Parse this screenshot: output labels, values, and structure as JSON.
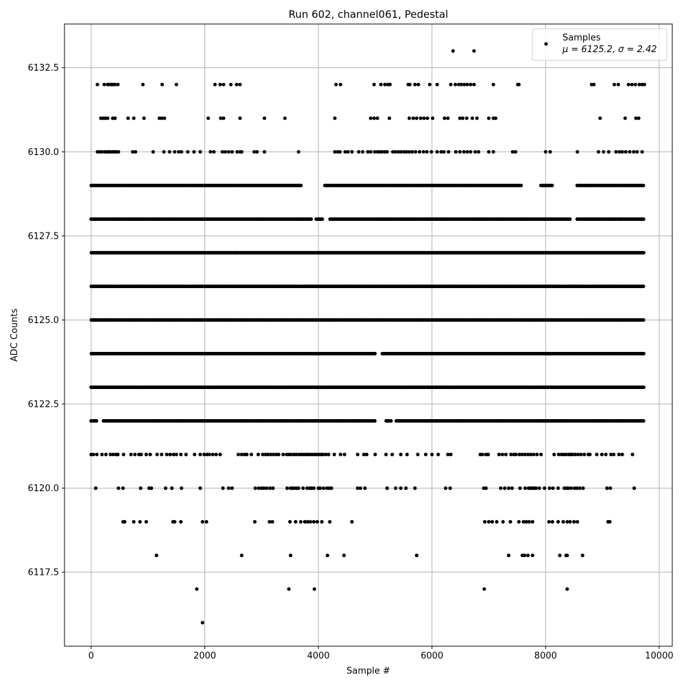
{
  "chart_data": {
    "type": "scatter",
    "title": "Run 602, channel061, Pedestal",
    "xlabel": "Sample #",
    "ylabel": "ADC Counts",
    "xlim": [
      -470,
      10230
    ],
    "ylim": [
      6115.3,
      6133.8
    ],
    "xticks": [
      0,
      2000,
      4000,
      6000,
      8000,
      10000
    ],
    "yticks": [
      6117.5,
      6120.0,
      6122.5,
      6125.0,
      6127.5,
      6130.0,
      6132.5
    ],
    "ytick_labels": [
      "6117.5",
      "6120.0",
      "6122.5",
      "6125.0",
      "6127.5",
      "6130.0",
      "6132.5"
    ],
    "grid": true,
    "legend_position": "top-right",
    "series": [
      {
        "name": "Samples",
        "annotation": "μ = 6125.2, σ = 2.42",
        "color": "#000000",
        "x_range": [
          0,
          9740
        ],
        "levels": [
          {
            "y": 6133,
            "x": [
              6370,
              6740
            ]
          },
          {
            "y": 6132,
            "x": [
              110,
              230,
              290,
              330,
              360,
              390,
              420,
              470,
              910,
              1250,
              1500,
              2180,
              2270,
              2330,
              2460,
              2560,
              2620,
              4310,
              4390,
              4980,
              5100,
              5170,
              5220,
              5260,
              5580,
              5610,
              5700,
              5760,
              5960,
              6090,
              6330,
              6410,
              6470,
              6520,
              6570,
              6620,
              6680,
              6740,
              7080,
              7510,
              7530,
              8810,
              8850,
              9210,
              9280,
              9460,
              9520,
              9580,
              9650,
              9700,
              9740
            ]
          },
          {
            "y": 6131,
            "x": [
              170,
              210,
              250,
              290,
              380,
              420,
              650,
              750,
              930,
              1200,
              1240,
              1290,
              2060,
              2280,
              2330,
              2620,
              3050,
              3410,
              4290,
              4920,
              4980,
              5040,
              5250,
              5600,
              5670,
              5730,
              5800,
              5860,
              5920,
              6010,
              6220,
              6280,
              6490,
              6540,
              6610,
              6710,
              6790,
              7000,
              7080,
              7120,
              8960,
              9400,
              9590,
              9640
            ]
          },
          {
            "y": 6130,
            "x": [
              110,
              150,
              190,
              240,
              280,
              310,
              340,
              380,
              410,
              440,
              480,
              730,
              780,
              1090,
              1280,
              1380,
              1470,
              1540,
              1590,
              1700,
              1810,
              1920,
              2100,
              2160,
              2310,
              2360,
              2420,
              2480,
              2570,
              2620,
              2650,
              2870,
              2920,
              3050,
              3650,
              4290,
              4340,
              4380,
              4470,
              4520,
              4590,
              4710,
              4780,
              4870,
              4920,
              4990,
              5040,
              5080,
              5120,
              5170,
              5210,
              5310,
              5360,
              5410,
              5460,
              5510,
              5550,
              5600,
              5650,
              5710,
              5780,
              5850,
              5910,
              5990,
              6090,
              6160,
              6210,
              6290,
              6420,
              6490,
              6560,
              6620,
              6680,
              6760,
              6820,
              7000,
              7080,
              7420,
              7470,
              8000,
              8080,
              8560,
              8930,
              9020,
              9110,
              9240,
              9300,
              9350,
              9410,
              9480,
              9550,
              9610,
              9700
            ]
          }
        ],
        "dense_levels": [
          {
            "y": 6129,
            "x_from": 0,
            "x_to": 9740,
            "gaps": [
              [
                3700,
                4100
              ],
              [
                7590,
                7900
              ],
              [
                8120,
                8540
              ]
            ]
          },
          {
            "y": 6128,
            "x_from": 0,
            "x_to": 9740,
            "gaps": [
              [
                3880,
                3950
              ],
              [
                4080,
                4180
              ],
              [
                8440,
                8540
              ]
            ]
          },
          {
            "y": 6127,
            "x_from": 0,
            "x_to": 9740,
            "gaps": []
          },
          {
            "y": 6126,
            "x_from": 0,
            "x_to": 9740,
            "gaps": []
          },
          {
            "y": 6125,
            "x_from": 0,
            "x_to": 9740,
            "gaps": []
          },
          {
            "y": 6124,
            "x_from": 0,
            "x_to": 9740,
            "gaps": [
              [
                5010,
                5110
              ]
            ]
          },
          {
            "y": 6123,
            "x_from": 0,
            "x_to": 9740,
            "gaps": []
          },
          {
            "y": 6122,
            "x_from": 0,
            "x_to": 9740,
            "gaps": [
              [
                110,
                210
              ],
              [
                5000,
                5170
              ],
              [
                5300,
                5360
              ]
            ]
          }
        ],
        "levels_sparse_lower": [
          {
            "y": 6121,
            "x": [
              0,
              40,
              100,
              190,
              260,
              340,
              390,
              440,
              470,
              570,
              700,
              770,
              840,
              880,
              970,
              1040,
              1160,
              1240,
              1330,
              1390,
              1450,
              1500,
              1580,
              1670,
              1820,
              1920,
              1990,
              2040,
              2080,
              2140,
              2200,
              2270,
              2590,
              2650,
              2700,
              2740,
              2820,
              2940,
              3020,
              3070,
              3110,
              3160,
              3210,
              3260,
              3300,
              3380,
              3440,
              3480,
              3520,
              3570,
              3610,
              3660,
              3700,
              3740,
              3780,
              3810,
              3850,
              3890,
              3930,
              3970,
              4010,
              4050,
              4080,
              4130,
              4180,
              4280,
              4390,
              4460,
              4690,
              4800,
              4850,
              5000,
              5190,
              5300,
              5450,
              5560,
              5750,
              5890,
              6000,
              6110,
              6280,
              6330,
              6850,
              6890,
              6950,
              6990,
              7180,
              7240,
              7300,
              7390,
              7440,
              7480,
              7540,
              7590,
              7640,
              7690,
              7740,
              7790,
              7850,
              7920,
              8150,
              8230,
              8280,
              8320,
              8360,
              8410,
              8440,
              8470,
              8520,
              8570,
              8620,
              8680,
              8750,
              8780,
              8900,
              8990,
              9060,
              9150,
              9200,
              9290,
              9350,
              9530
            ]
          },
          {
            "y": 6120,
            "x": [
              80,
              480,
              560,
              870,
              1020,
              1060,
              1310,
              1420,
              1590,
              1920,
              2320,
              2420,
              2480,
              2890,
              2950,
              3000,
              3040,
              3090,
              3150,
              3200,
              3450,
              3510,
              3540,
              3580,
              3620,
              3650,
              3730,
              3800,
              3850,
              3880,
              3920,
              4000,
              4030,
              4090,
              4150,
              4190,
              4230,
              4690,
              4740,
              4820,
              5210,
              5360,
              5450,
              5540,
              5700,
              6240,
              6320,
              6910,
              6950,
              7210,
              7280,
              7350,
              7410,
              7550,
              7640,
              7700,
              7730,
              7760,
              7800,
              7830,
              7890,
              7980,
              8070,
              8130,
              8220,
              8330,
              8370,
              8400,
              8450,
              8510,
              8550,
              8600,
              8660,
              9080,
              9140,
              9560
            ]
          },
          {
            "y": 6119,
            "x": [
              560,
              590,
              750,
              860,
              970,
              1440,
              1470,
              1580,
              1960,
              2030,
              2880,
              3140,
              3190,
              3500,
              3600,
              3690,
              3760,
              3810,
              3860,
              3920,
              3980,
              4060,
              4200,
              4590,
              6930,
              7000,
              7060,
              7140,
              7250,
              7380,
              7530,
              7610,
              7660,
              7710,
              7770,
              8060,
              8120,
              8220,
              8310,
              8380,
              8430,
              8500,
              8560,
              9100,
              9130
            ]
          },
          {
            "y": 6118,
            "x": [
              1150,
              2650,
              3510,
              4160,
              4450,
              5730,
              7350,
              7590,
              7630,
              7690,
              7770,
              8250,
              8360,
              8380,
              8650
            ]
          },
          {
            "y": 6117,
            "x": [
              1860,
              3480,
              3930,
              6920,
              8380
            ]
          },
          {
            "y": 6116,
            "x": [
              1960
            ]
          }
        ]
      }
    ]
  }
}
